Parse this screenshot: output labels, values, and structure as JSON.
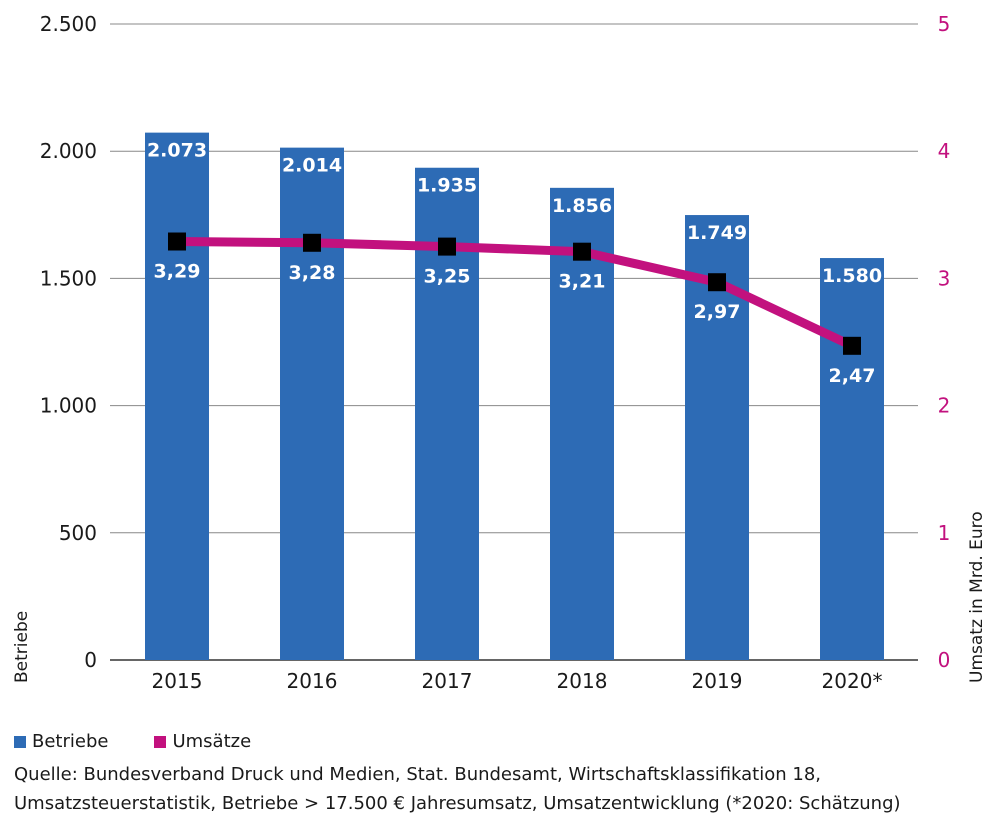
{
  "chart_data": {
    "type": "bar",
    "categories": [
      "2015",
      "2016",
      "2017",
      "2018",
      "2019",
      "2020*"
    ],
    "series": [
      {
        "name": "Betriebe",
        "type": "bar",
        "axis": "left",
        "values": [
          2073,
          2014,
          1935,
          1856,
          1749,
          1580
        ],
        "labels": [
          "2.073",
          "2.014",
          "1.935",
          "1.856",
          "1.749",
          "1.580"
        ],
        "color": "#2d6bb5"
      },
      {
        "name": "Umsätze",
        "type": "line",
        "axis": "right",
        "values": [
          3.29,
          3.28,
          3.25,
          3.21,
          2.97,
          2.47
        ],
        "labels": [
          "3,29",
          "3,28",
          "3,25",
          "3,21",
          "2,97",
          "2,47"
        ],
        "color": "#c2117e",
        "marker_color": "#000000"
      }
    ],
    "y_left": {
      "label": "Betriebe",
      "range": [
        0,
        2500
      ],
      "ticks": [
        0,
        500,
        1000,
        1500,
        2000,
        2500
      ],
      "tick_labels": [
        "0",
        "500",
        "1.000",
        "1.500",
        "2.000",
        "2.500"
      ]
    },
    "y_right": {
      "label": "Umsatz in Mrd. Euro",
      "range": [
        0,
        5
      ],
      "ticks": [
        0,
        1,
        2,
        3,
        4,
        5
      ],
      "tick_labels": [
        "0",
        "1",
        "2",
        "3",
        "4",
        "5"
      ],
      "color": "#c2117e"
    },
    "grid": true,
    "legend_position": "bottom-left"
  },
  "legend": {
    "items": [
      {
        "label": "Betriebe",
        "color": "#2d6bb5"
      },
      {
        "label": "Umsätze",
        "color": "#c2117e"
      }
    ]
  },
  "source": {
    "line1": "Quelle: Bundesverband Druck und Medien, Stat. Bundesamt, Wirtschaftsklassifikation 18,",
    "line2": "Umsatzsteuerstatistik, Betriebe > 17.500 € Jahresumsatz, Umsatzentwicklung (*2020: Schätzung)"
  }
}
